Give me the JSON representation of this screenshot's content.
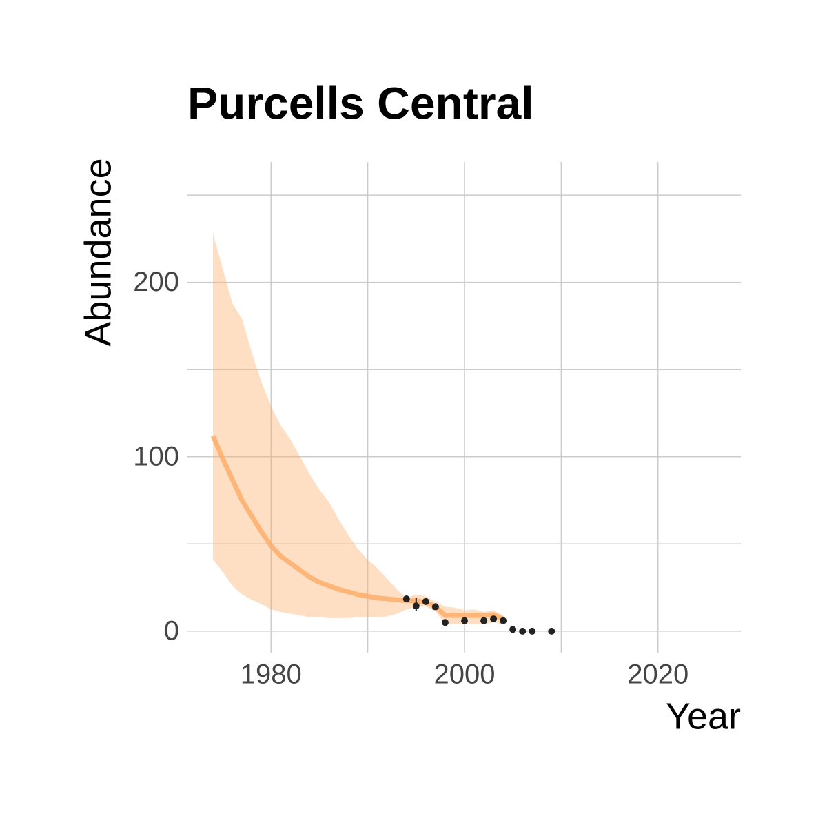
{
  "chart_data": {
    "type": "line",
    "title": "Purcells Central",
    "x_label": "Year",
    "y_label": "Abundance",
    "xlim": [
      1971.36,
      2028.57
    ],
    "ylim": [
      -12.3,
      269
    ],
    "xticks": [
      1980,
      2000,
      2020
    ],
    "yticks": [
      0,
      100,
      200
    ],
    "xminor": [
      1990,
      2010
    ],
    "yminor": [
      50,
      150,
      250
    ],
    "grid": true,
    "model_x": [
      1974,
      1975,
      1976,
      1977,
      1978,
      1979,
      1980,
      1981,
      1982,
      1983,
      1984,
      1985,
      1986,
      1987,
      1988,
      1989,
      1990,
      1991,
      1992,
      1993,
      1994,
      1995,
      1996,
      1997,
      1998,
      1999,
      2000,
      2001,
      2002,
      2003,
      2004
    ],
    "fit": {
      "color": "#fdae6b",
      "values": [
        112,
        99,
        87,
        75,
        66,
        57,
        49,
        43,
        39,
        35,
        31,
        28,
        26,
        24,
        22.5,
        21,
        20,
        19,
        18.5,
        18,
        17.5,
        17.5,
        16.5,
        14,
        9,
        9,
        9,
        9,
        9,
        9.5,
        7
      ]
    },
    "ribbon": {
      "color": "#fdae6b",
      "upper": [
        228,
        208,
        188,
        179,
        160,
        143,
        129,
        118,
        110,
        100,
        90,
        81,
        74,
        64,
        55,
        47,
        41,
        36,
        30,
        24,
        19,
        21,
        20,
        17,
        14,
        13.5,
        12,
        12.5,
        11,
        12,
        9
      ],
      "lower": [
        41,
        34,
        26,
        21,
        18,
        15.5,
        12.5,
        11,
        10,
        9,
        8,
        8,
        7.5,
        7.5,
        7.5,
        8,
        8,
        8,
        8.5,
        10,
        12.5,
        14,
        14,
        11.5,
        4,
        4,
        4,
        4,
        4,
        5,
        4
      ]
    },
    "points": {
      "color": "#222222",
      "x": [
        1994,
        1995,
        1996,
        1997,
        1998,
        2000,
        2002,
        2003,
        2004,
        2005,
        2006,
        2007,
        2009
      ],
      "values": [
        18.5,
        14.5,
        17,
        14,
        5,
        6,
        6,
        7,
        6,
        1,
        0,
        0,
        0
      ]
    },
    "error_bars": [
      {
        "x": 1995,
        "low": 11.5,
        "high": 19
      }
    ]
  }
}
